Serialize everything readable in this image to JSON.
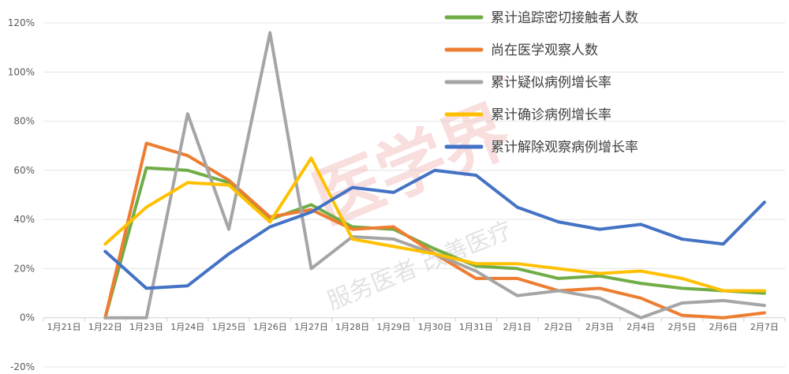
{
  "chart_data": {
    "type": "line",
    "title": "",
    "xlabel": "",
    "ylabel": "",
    "ylim": [
      -20,
      120
    ],
    "yticks": [
      "-20%",
      "0%",
      "20%",
      "40%",
      "60%",
      "80%",
      "100%",
      "120%"
    ],
    "ytick_values": [
      -20,
      0,
      20,
      40,
      60,
      80,
      100,
      120
    ],
    "grid": true,
    "legend_position": "top-right",
    "categories": [
      "1月21日",
      "1月22日",
      "1月23日",
      "1月24日",
      "1月25日",
      "1月26日",
      "1月27日",
      "1月28日",
      "1月29日",
      "1月30日",
      "1月31日",
      "2月1日",
      "2月2日",
      "2月3日",
      "2月4日",
      "2月5日",
      "2月6日",
      "2月7日"
    ],
    "series": [
      {
        "name": "累计追踪密切接触者人数",
        "color": "#70ad47",
        "values": [
          null,
          0,
          61,
          60,
          55,
          40,
          46,
          37,
          36,
          28,
          21,
          20,
          16,
          17,
          14,
          12,
          11,
          10
        ]
      },
      {
        "name": "尚在医学观察人数",
        "color": "#ed7d31",
        "values": [
          null,
          0,
          71,
          66,
          56,
          41,
          44,
          36,
          37,
          26,
          16,
          16,
          11,
          12,
          8,
          1,
          0,
          2
        ]
      },
      {
        "name": "累计疑似病例增长率",
        "color": "#a5a5a5",
        "values": [
          null,
          0,
          0,
          83,
          36,
          116,
          20,
          33,
          32,
          26,
          19,
          9,
          11,
          8,
          0,
          6,
          7,
          5
        ]
      },
      {
        "name": "累计确诊病例增长率",
        "color": "#ffc000",
        "values": [
          null,
          30,
          45,
          55,
          54,
          39,
          65,
          32,
          29,
          26,
          22,
          22,
          20,
          18,
          19,
          16,
          11,
          11
        ]
      },
      {
        "name": "累计解除观察病例增长率",
        "color": "#4472c4",
        "values": [
          null,
          27,
          12,
          13,
          26,
          37,
          43,
          53,
          51,
          60,
          58,
          45,
          39,
          36,
          38,
          32,
          30,
          47
        ]
      }
    ]
  },
  "watermark": {
    "main": "医学界",
    "registered": "®",
    "tagline": "服务医者 改善医疗"
  }
}
